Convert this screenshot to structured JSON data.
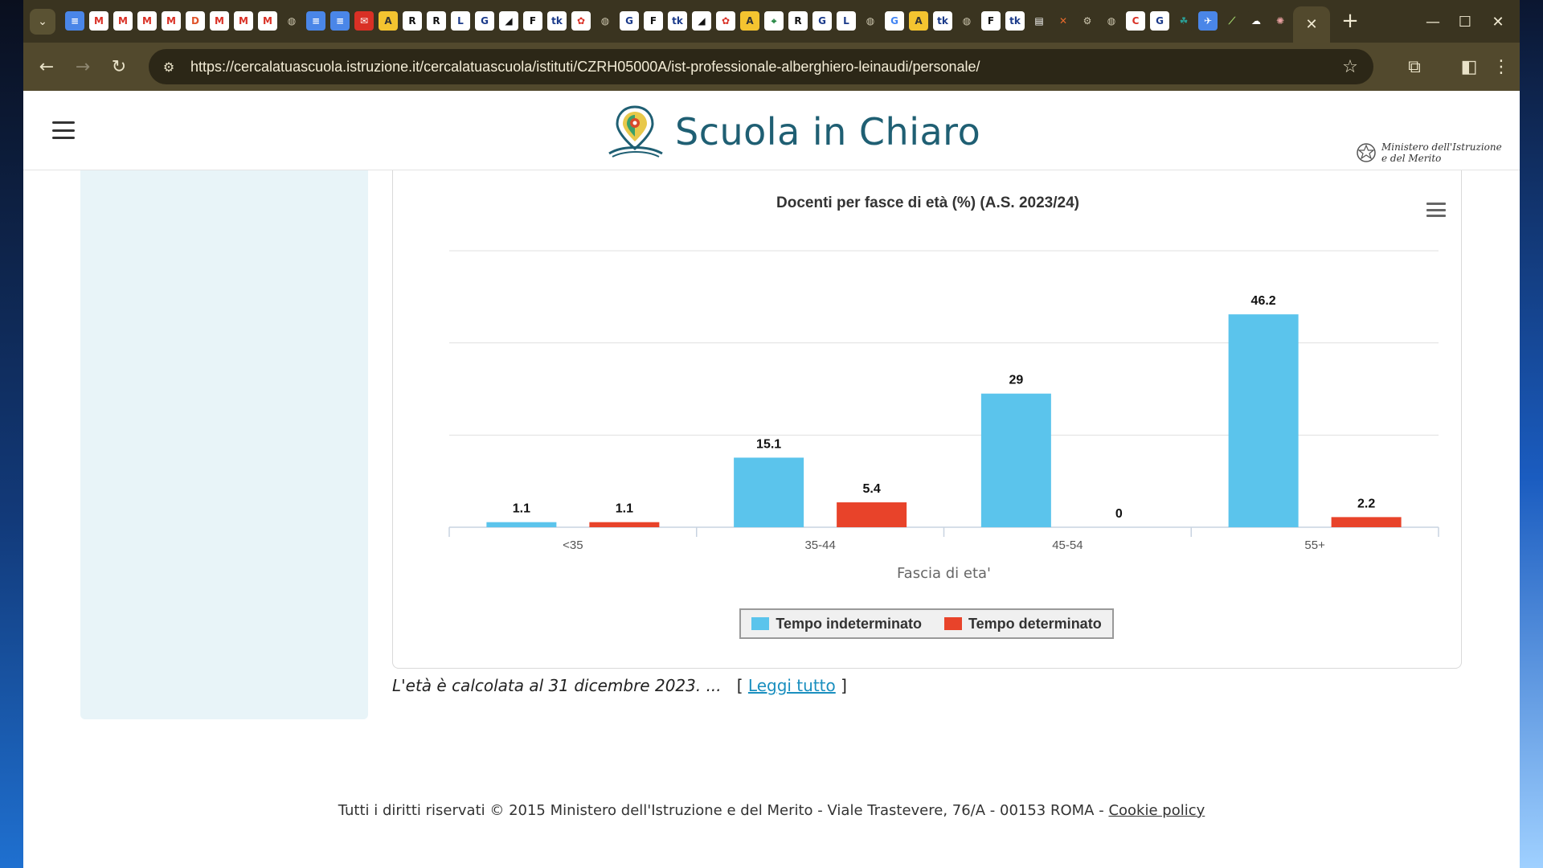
{
  "browser": {
    "url": "https://cercalatuascuola.istruzione.it/cercalatuascuola/istituti/CZRH05000A/ist-professionale-alberghiero-leinaudi/personale/",
    "tab_icons": [
      {
        "glyph": "≡",
        "bg": "#4a86e8",
        "fg": "#ffffff"
      },
      {
        "glyph": "M",
        "bg": "#ffffff",
        "fg": "#d93025"
      },
      {
        "glyph": "M",
        "bg": "#ffffff",
        "fg": "#d93025"
      },
      {
        "glyph": "M",
        "bg": "#ffffff",
        "fg": "#d93025"
      },
      {
        "glyph": "M",
        "bg": "#ffffff",
        "fg": "#d93025"
      },
      {
        "glyph": "D",
        "bg": "#ffffff",
        "fg": "#e0542b"
      },
      {
        "glyph": "M",
        "bg": "#ffffff",
        "fg": "#d93025"
      },
      {
        "glyph": "M",
        "bg": "#ffffff",
        "fg": "#d93025"
      },
      {
        "glyph": "M",
        "bg": "#ffffff",
        "fg": "#d93025"
      },
      {
        "glyph": "◍",
        "bg": "#3a3420",
        "fg": "#cfc8b0"
      },
      {
        "glyph": "≡",
        "bg": "#4a86e8",
        "fg": "#ffffff"
      },
      {
        "glyph": "≡",
        "bg": "#4a86e8",
        "fg": "#ffffff"
      },
      {
        "glyph": "✉",
        "bg": "#d93025",
        "fg": "#ffffff"
      },
      {
        "glyph": "A",
        "bg": "#f4c430",
        "fg": "#333333"
      },
      {
        "glyph": "R",
        "bg": "#ffffff",
        "fg": "#111111"
      },
      {
        "glyph": "R",
        "bg": "#ffffff",
        "fg": "#111111"
      },
      {
        "glyph": "L",
        "bg": "#ffffff",
        "fg": "#1a3a8a"
      },
      {
        "glyph": "G",
        "bg": "#ffffff",
        "fg": "#1a3a8a"
      },
      {
        "glyph": "◢",
        "bg": "#ffffff",
        "fg": "#111111"
      },
      {
        "glyph": "F",
        "bg": "#ffffff",
        "fg": "#111111"
      },
      {
        "glyph": "tk",
        "bg": "#ffffff",
        "fg": "#1a3a8a"
      },
      {
        "glyph": "✿",
        "bg": "#ffffff",
        "fg": "#d93025"
      },
      {
        "glyph": "◍",
        "bg": "#3a3420",
        "fg": "#cfc8b0"
      },
      {
        "glyph": "G",
        "bg": "#ffffff",
        "fg": "#1a3a8a"
      },
      {
        "glyph": "F",
        "bg": "#ffffff",
        "fg": "#111111"
      },
      {
        "glyph": "tk",
        "bg": "#ffffff",
        "fg": "#1a3a8a"
      },
      {
        "glyph": "◢",
        "bg": "#ffffff",
        "fg": "#111111"
      },
      {
        "glyph": "✿",
        "bg": "#ffffff",
        "fg": "#d93025"
      },
      {
        "glyph": "A",
        "bg": "#f4c430",
        "fg": "#333333"
      },
      {
        "glyph": "⌖",
        "bg": "#ffffff",
        "fg": "#188038"
      },
      {
        "glyph": "R",
        "bg": "#ffffff",
        "fg": "#111111"
      },
      {
        "glyph": "G",
        "bg": "#ffffff",
        "fg": "#1a3a8a"
      },
      {
        "glyph": "L",
        "bg": "#ffffff",
        "fg": "#1a3a8a"
      },
      {
        "glyph": "◍",
        "bg": "#3a3420",
        "fg": "#cfc8b0"
      },
      {
        "glyph": "G",
        "bg": "#ffffff",
        "fg": "#4285f4"
      },
      {
        "glyph": "A",
        "bg": "#f4c430",
        "fg": "#333333"
      },
      {
        "glyph": "tk",
        "bg": "#ffffff",
        "fg": "#1a3a8a"
      },
      {
        "glyph": "◍",
        "bg": "#3a3420",
        "fg": "#cfc8b0"
      },
      {
        "glyph": "F",
        "bg": "#ffffff",
        "fg": "#111111"
      },
      {
        "glyph": "tk",
        "bg": "#ffffff",
        "fg": "#1a3a8a"
      },
      {
        "glyph": "▤",
        "bg": "#3a3420",
        "fg": "#ffffff"
      },
      {
        "glyph": "✕",
        "bg": "#3a3420",
        "fg": "#e66a2c"
      },
      {
        "glyph": "⚙",
        "bg": "#3a3420",
        "fg": "#cfc8b0"
      },
      {
        "glyph": "◍",
        "bg": "#3a3420",
        "fg": "#cfc8b0"
      },
      {
        "glyph": "C",
        "bg": "#ffffff",
        "fg": "#d93025"
      },
      {
        "glyph": "G",
        "bg": "#ffffff",
        "fg": "#1a3a8a"
      },
      {
        "glyph": "☘",
        "bg": "#3a3420",
        "fg": "#2aa198"
      },
      {
        "glyph": "✈",
        "bg": "#4a86e8",
        "fg": "#ffffff"
      },
      {
        "glyph": "⟋",
        "bg": "#3a3420",
        "fg": "#9fd06a"
      },
      {
        "glyph": "☁",
        "bg": "#3a3420",
        "fg": "#ffffff"
      },
      {
        "glyph": "✺",
        "bg": "#3a3420",
        "fg": "#e8a0a0"
      }
    ]
  },
  "site": {
    "logo_text": "Scuola in Chiaro",
    "ministry_line1": "Ministero dell'Istruzione",
    "ministry_line2": "e del Merito"
  },
  "colors": {
    "tempo_indeterminato": "#5bc4ec",
    "tempo_determinato": "#e8432a",
    "gridline": "#e0e0e0",
    "axis": "#c8d3e0"
  },
  "chart_data": {
    "type": "bar",
    "title": "Docenti per fasce di età (%) (A.S. 2023/24)",
    "xlabel": "Fascia di eta'",
    "ylabel": "",
    "categories": [
      "<35",
      "35-44",
      "45-54",
      "55+"
    ],
    "series": [
      {
        "name": "Tempo indeterminato",
        "values": [
          1.1,
          15.1,
          29,
          46.2
        ]
      },
      {
        "name": "Tempo determinato",
        "values": [
          1.1,
          5.4,
          0,
          2.2
        ]
      }
    ],
    "ylim": [
      0,
      60
    ],
    "grid": true,
    "legend": "bottom-center"
  },
  "note": {
    "text": "L'età è calcolata al 31 dicembre 2023. ...",
    "bracket_open": "[",
    "link": "Leggi tutto",
    "bracket_close": "]"
  },
  "footer": {
    "text": "Tutti i diritti riservati © 2015 Ministero dell'Istruzione e del Merito - Viale Trastevere, 76/A - 00153 ROMA -",
    "link": "Cookie policy"
  }
}
